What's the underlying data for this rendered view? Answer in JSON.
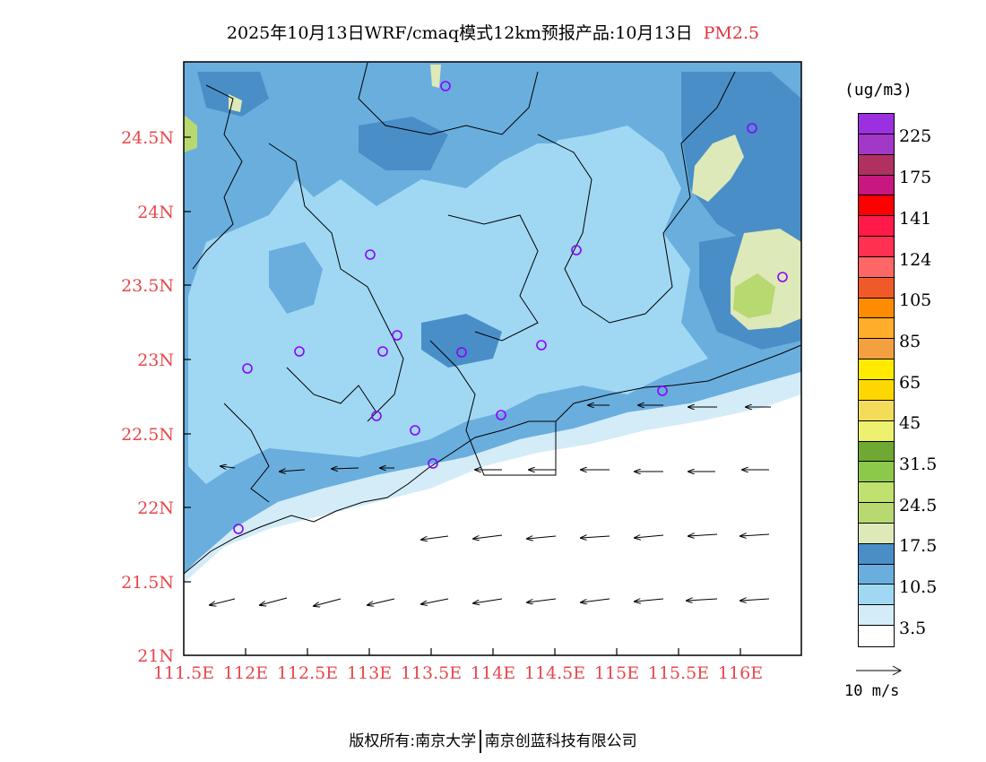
{
  "title": {
    "main": "2025年10月13日WRF/cmaq模式12km预报产品:10月13日",
    "pollutant": "PM2.5"
  },
  "axes": {
    "lat_labels": [
      "24.5N",
      "24N",
      "23.5N",
      "23N",
      "22.5N",
      "22N",
      "21.5N",
      "21N"
    ],
    "lat_values": [
      24.5,
      24,
      23.5,
      23,
      22.5,
      22,
      21.5,
      21
    ],
    "lon_labels": [
      "111.5E",
      "112E",
      "112.5E",
      "113E",
      "113.5E",
      "114E",
      "114.5E",
      "115E",
      "115.5E",
      "116E"
    ],
    "lon_values": [
      111.5,
      112,
      112.5,
      113,
      113.5,
      114,
      114.5,
      115,
      115.5,
      116
    ]
  },
  "legend": {
    "unit": "(ug/m3)",
    "colors": [
      "#9b30e0",
      "#a238c8",
      "#b03060",
      "#c81880",
      "#ff0000",
      "#ff1a4a",
      "#ff3050",
      "#ff6666",
      "#f05a28",
      "#ff8c00",
      "#ffad2a",
      "#f5a040",
      "#ffea00",
      "#ffd700",
      "#f2dc5a",
      "#eef070",
      "#6fa832",
      "#8cc84a",
      "#c0e070",
      "#b8d870",
      "#dde9b8",
      "#4a8ec8",
      "#6aaede",
      "#a0d8f4",
      "#d4ecf8",
      "#ffffff"
    ],
    "labels": [
      "225",
      "175",
      "141",
      "124",
      "105",
      "85",
      "65",
      "45",
      "31.5",
      "24.5",
      "17.5",
      "10.5",
      "3.5"
    ]
  },
  "wind_reference": {
    "label": "10 m/s"
  },
  "footer": {
    "left": "版权所有:南京大学",
    "right": "南京创蓝科技有限公司"
  }
}
